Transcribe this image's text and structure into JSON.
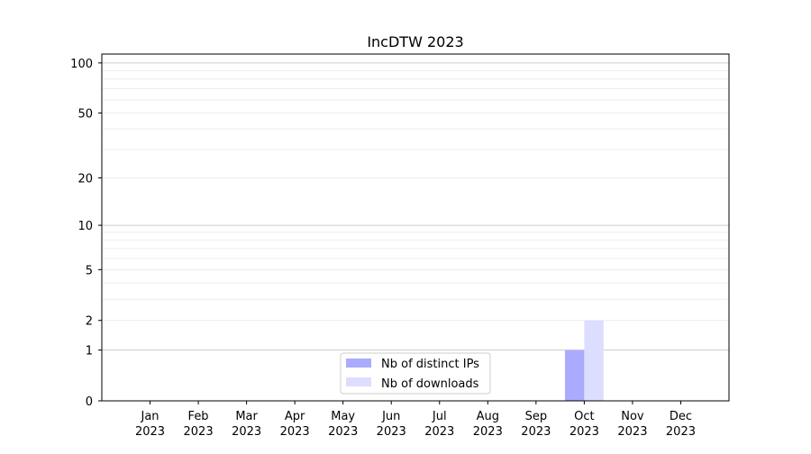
{
  "chart_data": {
    "type": "bar",
    "title": "IncDTW 2023",
    "xlabel": "",
    "ylabel": "",
    "y_scale": "log10(1+y)",
    "ylim": [
      0,
      113
    ],
    "y_ticks": [
      0,
      1,
      2,
      5,
      10,
      20,
      50,
      100
    ],
    "y_major_grid": [
      1,
      10,
      100
    ],
    "y_minor_grid": [
      2,
      3,
      4,
      5,
      6,
      7,
      8,
      9,
      20,
      30,
      40,
      50,
      60,
      70,
      80,
      90
    ],
    "grid": true,
    "legend_position": "lower-center",
    "categories": [
      [
        "Jan",
        "2023"
      ],
      [
        "Feb",
        "2023"
      ],
      [
        "Mar",
        "2023"
      ],
      [
        "Apr",
        "2023"
      ],
      [
        "May",
        "2023"
      ],
      [
        "Jun",
        "2023"
      ],
      [
        "Jul",
        "2023"
      ],
      [
        "Aug",
        "2023"
      ],
      [
        "Sep",
        "2023"
      ],
      [
        "Oct",
        "2023"
      ],
      [
        "Nov",
        "2023"
      ],
      [
        "Dec",
        "2023"
      ]
    ],
    "series": [
      {
        "name": "Nb of distinct IPs",
        "color": "#aaaaff",
        "values": [
          0,
          0,
          0,
          0,
          0,
          0,
          0,
          0,
          0,
          1,
          0,
          0
        ]
      },
      {
        "name": "Nb of downloads",
        "color": "#ddddff",
        "values": [
          0,
          0,
          0,
          0,
          0,
          0,
          0,
          0,
          0,
          2,
          0,
          0
        ]
      }
    ]
  }
}
